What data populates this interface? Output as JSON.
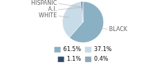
{
  "chart_data": {
    "type": "pie",
    "categories": [
      "BLACK",
      "WHITE",
      "A.I.",
      "HISPANIC"
    ],
    "values": [
      61.5,
      37.1,
      1.1,
      0.4
    ],
    "value_labels": [
      "61.5%",
      "37.1%",
      "1.1%",
      "0.4%"
    ],
    "colors": [
      "#8ab0c4",
      "#c8dce8",
      "#2e4a6b",
      "#8fa8b8"
    ],
    "legend": "bottom"
  }
}
